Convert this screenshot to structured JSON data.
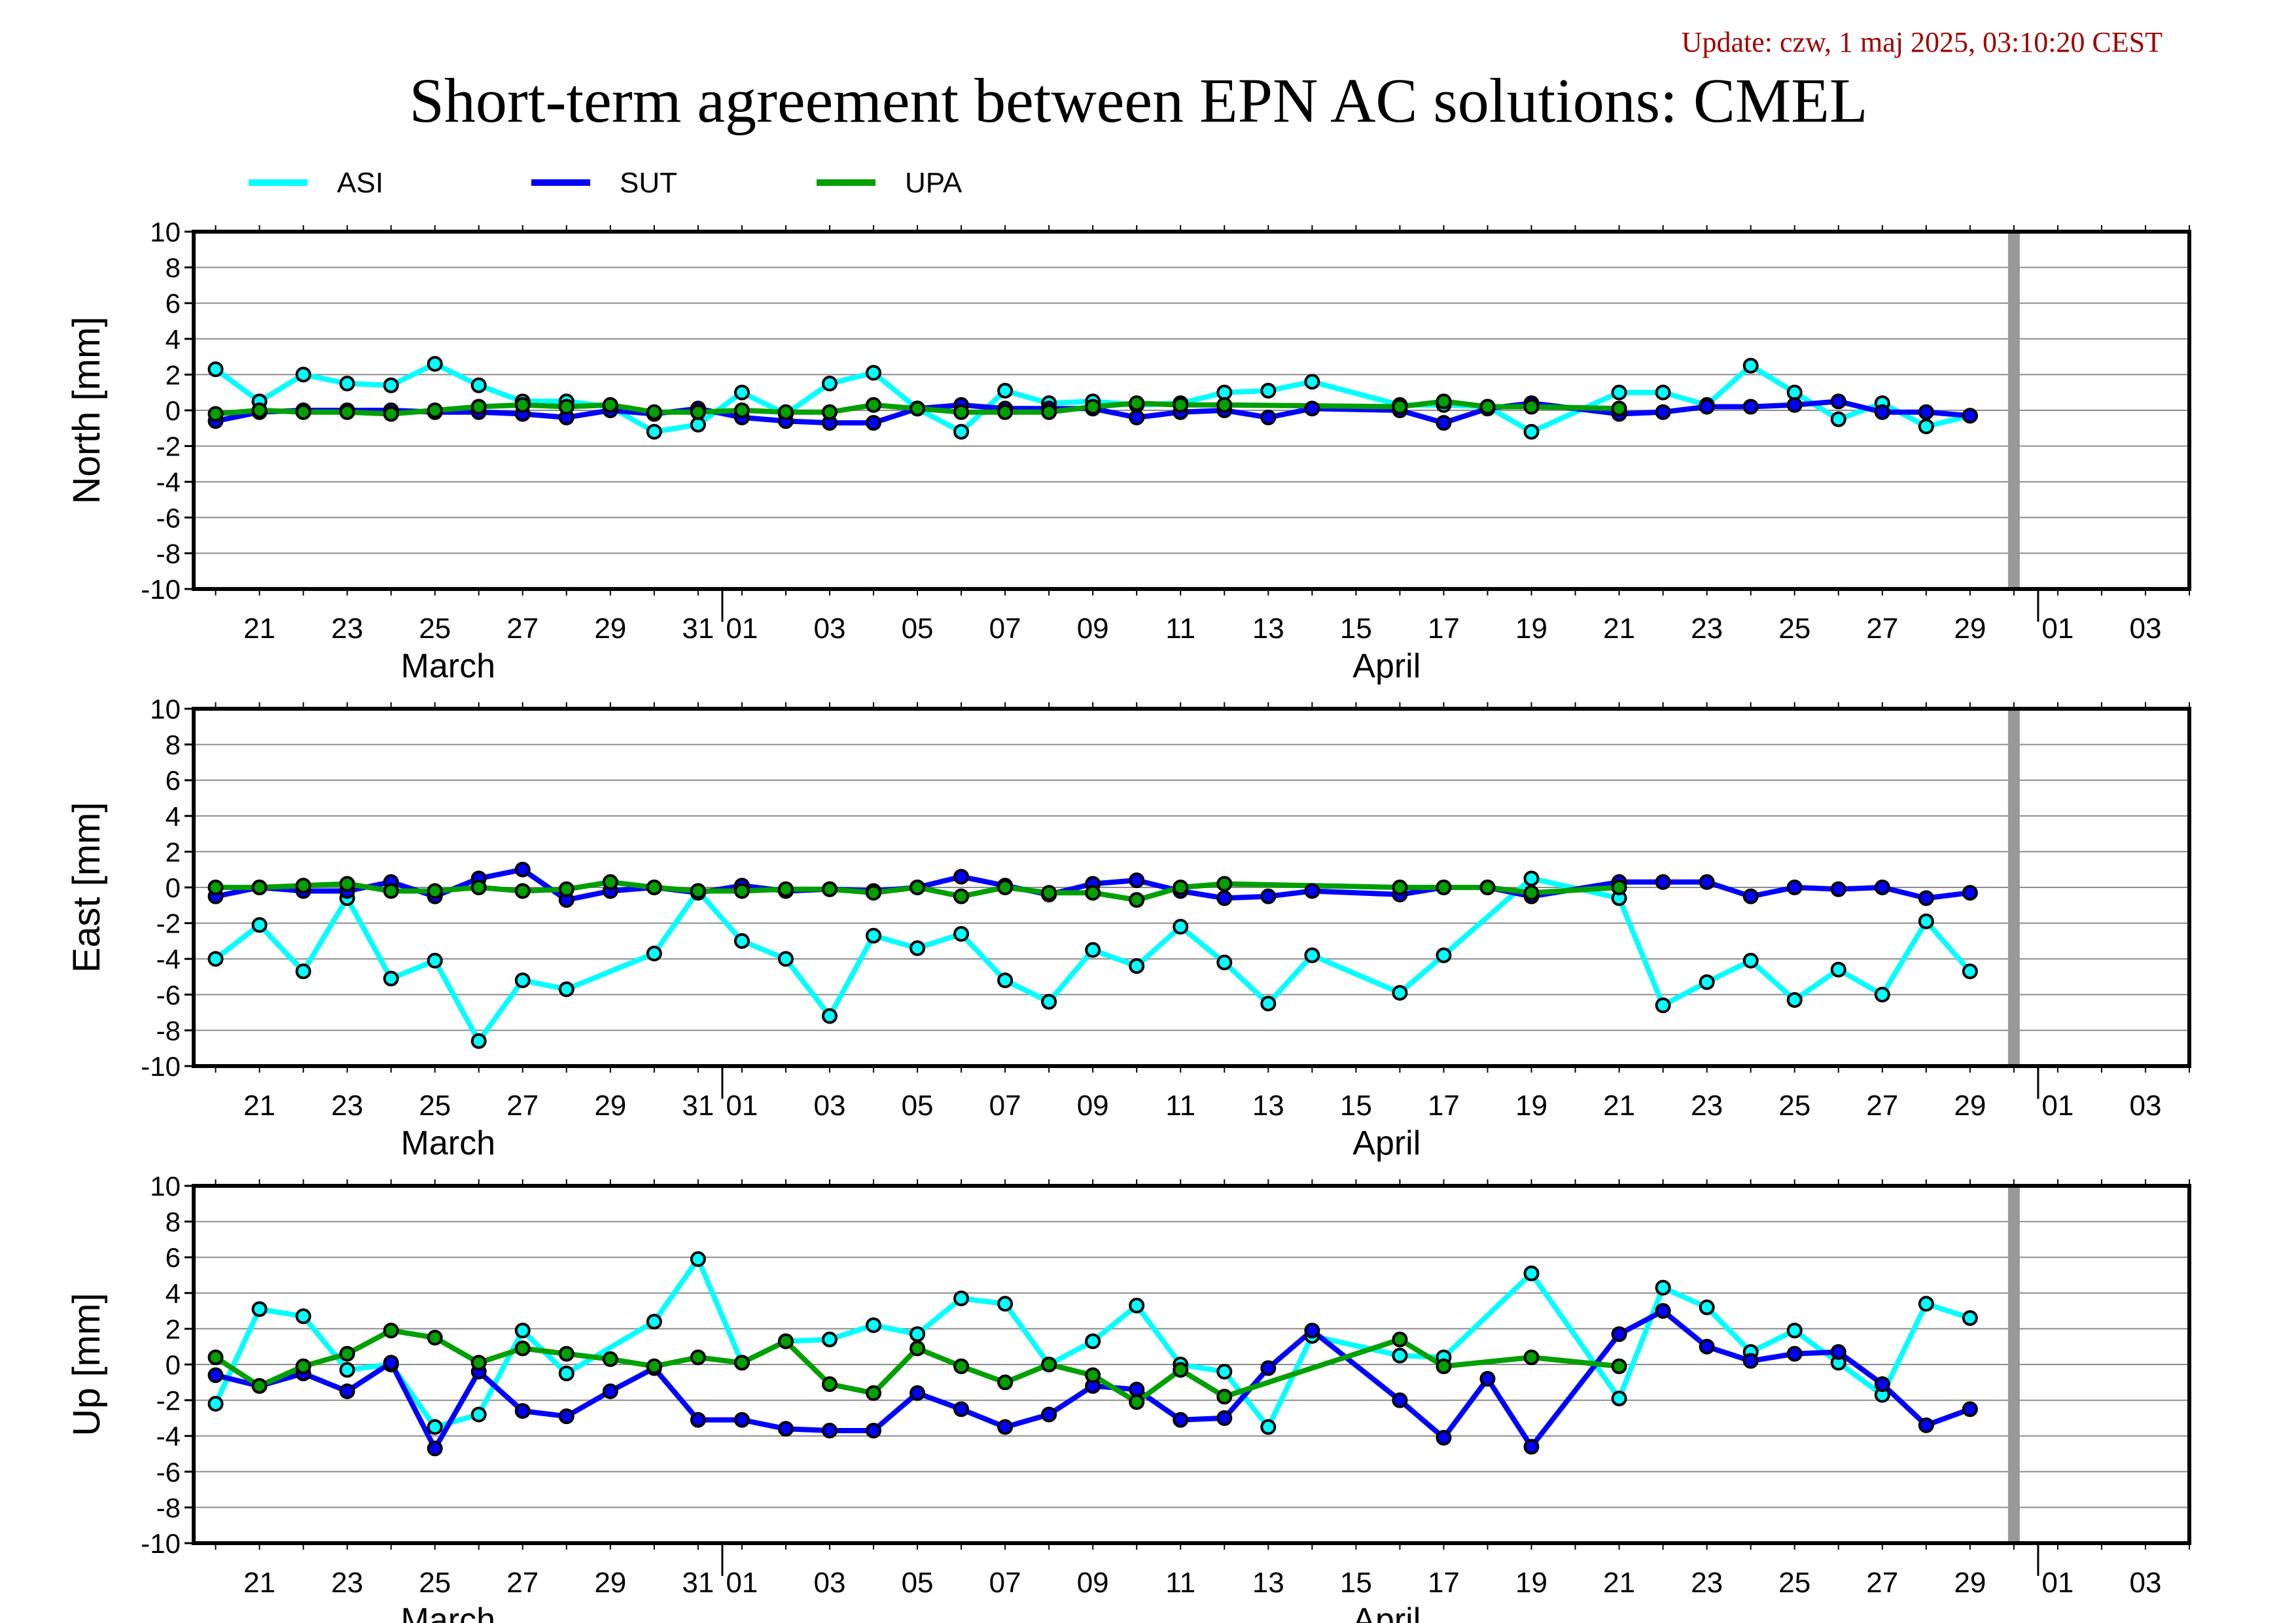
{
  "update_text": "Update: czw, 1 maj 2025, 03:10:20 CEST",
  "title": "Short-term agreement between EPN AC solutions: CMEL",
  "colors": {
    "ASI": "#00ffff",
    "SUT": "#0000ff",
    "UPA": "#00a000",
    "update": "#a00000",
    "marker_line": "#999999"
  },
  "legend": [
    {
      "name": "ASI",
      "color": "#00ffff"
    },
    {
      "name": "SUT",
      "color": "#0000ff"
    },
    {
      "name": "UPA",
      "color": "#00a000"
    }
  ],
  "x_axis": {
    "tick_labels": [
      "21",
      "23",
      "25",
      "27",
      "29",
      "31",
      "01",
      "03",
      "05",
      "07",
      "09",
      "11",
      "13",
      "15",
      "17",
      "19",
      "21",
      "23",
      "25",
      "27",
      "29",
      "01",
      "03"
    ],
    "month_labels": [
      "March",
      "April"
    ]
  },
  "chart_data": [
    {
      "type": "line",
      "ylabel": "North [mm]",
      "ylim": [
        -10,
        10
      ],
      "yticks": [
        10,
        8,
        6,
        4,
        2,
        0,
        -2,
        -4,
        -6,
        -8,
        -10
      ],
      "x_range": [
        "2025-03-19.5",
        "2025-05-04"
      ],
      "marker_date": "2025-04-30",
      "series": [
        {
          "name": "ASI",
          "x": [
            "2025-03-20",
            "2025-03-21",
            "2025-03-22",
            "2025-03-23",
            "2025-03-24",
            "2025-03-25",
            "2025-03-26",
            "2025-03-27",
            "2025-03-28",
            "2025-03-29",
            "2025-03-30",
            "2025-03-31",
            "2025-04-01",
            "2025-04-02",
            "2025-04-03",
            "2025-04-04",
            "2025-04-05",
            "2025-04-06",
            "2025-04-07",
            "2025-04-08",
            "2025-04-09",
            "2025-04-10",
            "2025-04-11",
            "2025-04-12",
            "2025-04-13",
            "2025-04-14",
            "2025-04-16",
            "2025-04-17",
            "2025-04-18",
            "2025-04-19",
            "2025-04-21",
            "2025-04-22",
            "2025-04-23",
            "2025-04-24",
            "2025-04-25",
            "2025-04-26",
            "2025-04-27",
            "2025-04-28",
            "2025-04-29"
          ],
          "values": [
            2.3,
            0.5,
            2.0,
            1.5,
            1.4,
            2.6,
            1.4,
            0.5,
            0.5,
            0.2,
            -1.2,
            -0.8,
            1.0,
            -0.2,
            1.5,
            2.1,
            0.1,
            -1.2,
            1.1,
            0.4,
            0.5,
            0.3,
            0.4,
            1.0,
            1.1,
            1.6,
            0.3,
            0.3,
            0.2,
            -1.2,
            1.0,
            1.0,
            0.3,
            2.5,
            1.0,
            -0.5,
            0.4,
            -0.9,
            -0.3
          ]
        },
        {
          "name": "SUT",
          "x": [
            "2025-03-20",
            "2025-03-21",
            "2025-03-22",
            "2025-03-23",
            "2025-03-24",
            "2025-03-25",
            "2025-03-26",
            "2025-03-27",
            "2025-03-28",
            "2025-03-29",
            "2025-03-30",
            "2025-03-31",
            "2025-04-01",
            "2025-04-02",
            "2025-04-03",
            "2025-04-04",
            "2025-04-05",
            "2025-04-06",
            "2025-04-07",
            "2025-04-08",
            "2025-04-09",
            "2025-04-10",
            "2025-04-11",
            "2025-04-12",
            "2025-04-13",
            "2025-04-14",
            "2025-04-16",
            "2025-04-17",
            "2025-04-18",
            "2025-04-19",
            "2025-04-21",
            "2025-04-22",
            "2025-04-23",
            "2025-04-24",
            "2025-04-25",
            "2025-04-26",
            "2025-04-27",
            "2025-04-28",
            "2025-04-29"
          ],
          "values": [
            -0.6,
            -0.1,
            0.0,
            0.0,
            0.0,
            -0.1,
            -0.1,
            -0.2,
            -0.4,
            0.0,
            -0.2,
            0.1,
            -0.4,
            -0.6,
            -0.7,
            -0.7,
            0.1,
            0.3,
            0.1,
            0.1,
            0.1,
            -0.4,
            -0.1,
            0.0,
            -0.4,
            0.1,
            0.0,
            -0.7,
            0.1,
            0.4,
            -0.2,
            -0.1,
            0.2,
            0.2,
            0.3,
            0.5,
            -0.1,
            -0.1,
            -0.3
          ]
        },
        {
          "name": "UPA",
          "x": [
            "2025-03-20",
            "2025-03-21",
            "2025-03-22",
            "2025-03-23",
            "2025-03-24",
            "2025-03-25",
            "2025-03-26",
            "2025-03-27",
            "2025-03-28",
            "2025-03-29",
            "2025-03-30",
            "2025-03-31",
            "2025-04-01",
            "2025-04-02",
            "2025-04-03",
            "2025-04-04",
            "2025-04-05",
            "2025-04-06",
            "2025-04-07",
            "2025-04-08",
            "2025-04-09",
            "2025-04-10",
            "2025-04-11",
            "2025-04-12",
            "2025-04-16",
            "2025-04-17",
            "2025-04-18",
            "2025-04-19",
            "2025-04-21"
          ],
          "values": [
            -0.2,
            0.0,
            -0.1,
            -0.1,
            -0.2,
            0.0,
            0.2,
            0.3,
            0.2,
            0.3,
            -0.1,
            -0.1,
            0.0,
            -0.1,
            -0.1,
            0.3,
            0.1,
            -0.1,
            -0.1,
            -0.1,
            0.2,
            0.4,
            0.3,
            0.3,
            0.2,
            0.5,
            0.2,
            0.2,
            0.1
          ]
        }
      ]
    },
    {
      "type": "line",
      "ylabel": "East [mm]",
      "ylim": [
        -10,
        10
      ],
      "yticks": [
        10,
        8,
        6,
        4,
        2,
        0,
        -2,
        -4,
        -6,
        -8,
        -10
      ],
      "x_range": [
        "2025-03-19.5",
        "2025-05-04"
      ],
      "marker_date": "2025-04-30",
      "series": [
        {
          "name": "ASI",
          "x": [
            "2025-03-20",
            "2025-03-21",
            "2025-03-22",
            "2025-03-23",
            "2025-03-24",
            "2025-03-25",
            "2025-03-26",
            "2025-03-27",
            "2025-03-28",
            "2025-03-30",
            "2025-03-31",
            "2025-04-01",
            "2025-04-02",
            "2025-04-03",
            "2025-04-04",
            "2025-04-05",
            "2025-04-06",
            "2025-04-07",
            "2025-04-08",
            "2025-04-09",
            "2025-04-10",
            "2025-04-11",
            "2025-04-12",
            "2025-04-13",
            "2025-04-14",
            "2025-04-16",
            "2025-04-17",
            "2025-04-19",
            "2025-04-21",
            "2025-04-22",
            "2025-04-23",
            "2025-04-24",
            "2025-04-25",
            "2025-04-26",
            "2025-04-27",
            "2025-04-28",
            "2025-04-29"
          ],
          "values": [
            -4.0,
            -2.1,
            -4.7,
            -0.6,
            -5.1,
            -4.1,
            -8.6,
            -5.2,
            -5.7,
            -3.7,
            -0.2,
            -3.0,
            -4.0,
            -7.2,
            -2.7,
            -3.4,
            -2.6,
            -5.2,
            -6.4,
            -3.5,
            -4.4,
            -2.2,
            -4.2,
            -6.5,
            -3.8,
            -5.9,
            -3.8,
            0.5,
            -0.6,
            -6.6,
            -5.3,
            -4.1,
            -6.3,
            -4.6,
            -6.0,
            -1.9,
            -4.7
          ]
        },
        {
          "name": "SUT",
          "x": [
            "2025-03-20",
            "2025-03-21",
            "2025-03-22",
            "2025-03-23",
            "2025-03-24",
            "2025-03-25",
            "2025-03-26",
            "2025-03-27",
            "2025-03-28",
            "2025-03-29",
            "2025-03-30",
            "2025-03-31",
            "2025-04-01",
            "2025-04-02",
            "2025-04-03",
            "2025-04-04",
            "2025-04-05",
            "2025-04-06",
            "2025-04-07",
            "2025-04-08",
            "2025-04-09",
            "2025-04-10",
            "2025-04-11",
            "2025-04-12",
            "2025-04-13",
            "2025-04-14",
            "2025-04-16",
            "2025-04-17",
            "2025-04-18",
            "2025-04-19",
            "2025-04-21",
            "2025-04-22",
            "2025-04-23",
            "2025-04-24",
            "2025-04-25",
            "2025-04-26",
            "2025-04-27",
            "2025-04-28",
            "2025-04-29"
          ],
          "values": [
            -0.5,
            0.0,
            -0.2,
            -0.2,
            0.3,
            -0.5,
            0.5,
            1.0,
            -0.7,
            -0.2,
            0.0,
            -0.3,
            0.1,
            -0.2,
            -0.1,
            -0.2,
            0.0,
            0.6,
            0.1,
            -0.4,
            0.2,
            0.4,
            -0.2,
            -0.6,
            -0.5,
            -0.2,
            -0.4,
            0.0,
            0.0,
            -0.5,
            0.3,
            0.3,
            0.3,
            -0.5,
            0.0,
            -0.1,
            0.0,
            -0.6,
            -0.3
          ]
        },
        {
          "name": "UPA",
          "x": [
            "2025-03-20",
            "2025-03-21",
            "2025-03-22",
            "2025-03-23",
            "2025-03-24",
            "2025-03-25",
            "2025-03-26",
            "2025-03-27",
            "2025-03-28",
            "2025-03-29",
            "2025-03-30",
            "2025-03-31",
            "2025-04-01",
            "2025-04-02",
            "2025-04-03",
            "2025-04-04",
            "2025-04-05",
            "2025-04-06",
            "2025-04-07",
            "2025-04-08",
            "2025-04-09",
            "2025-04-10",
            "2025-04-11",
            "2025-04-12",
            "2025-04-16",
            "2025-04-17",
            "2025-04-18",
            "2025-04-19",
            "2025-04-21"
          ],
          "values": [
            0.0,
            0.0,
            0.1,
            0.2,
            -0.2,
            -0.2,
            0.0,
            -0.2,
            -0.1,
            0.3,
            0.0,
            -0.2,
            -0.2,
            -0.1,
            -0.1,
            -0.3,
            0.0,
            -0.5,
            0.0,
            -0.3,
            -0.3,
            -0.7,
            0.0,
            0.2,
            0.0,
            0.0,
            0.0,
            -0.3,
            0.0
          ]
        }
      ]
    },
    {
      "type": "line",
      "ylabel": "Up [mm]",
      "ylim": [
        -10,
        10
      ],
      "yticks": [
        10,
        8,
        6,
        4,
        2,
        0,
        -2,
        -4,
        -6,
        -8,
        -10
      ],
      "x_range": [
        "2025-03-19.5",
        "2025-05-04"
      ],
      "marker_date": "2025-04-30",
      "series": [
        {
          "name": "ASI",
          "x": [
            "2025-03-20",
            "2025-03-21",
            "2025-03-22",
            "2025-03-23",
            "2025-03-24",
            "2025-03-25",
            "2025-03-26",
            "2025-03-27",
            "2025-03-28",
            "2025-03-30",
            "2025-03-31",
            "2025-04-01",
            "2025-04-02",
            "2025-04-03",
            "2025-04-04",
            "2025-04-05",
            "2025-04-06",
            "2025-04-07",
            "2025-04-08",
            "2025-04-09",
            "2025-04-10",
            "2025-04-11",
            "2025-04-12",
            "2025-04-13",
            "2025-04-14",
            "2025-04-16",
            "2025-04-17",
            "2025-04-19",
            "2025-04-21",
            "2025-04-22",
            "2025-04-23",
            "2025-04-24",
            "2025-04-25",
            "2025-04-26",
            "2025-04-27",
            "2025-04-28",
            "2025-04-29"
          ],
          "values": [
            -2.2,
            3.1,
            2.7,
            -0.3,
            0.0,
            -3.5,
            -2.8,
            1.9,
            -0.5,
            2.4,
            5.9,
            0.1,
            1.3,
            1.4,
            2.2,
            1.7,
            3.7,
            3.4,
            0.0,
            1.3,
            3.3,
            0.0,
            -0.4,
            -3.5,
            1.6,
            0.5,
            0.4,
            5.1,
            -1.9,
            4.3,
            3.2,
            0.7,
            1.9,
            0.1,
            -1.7,
            3.4,
            2.6
          ]
        },
        {
          "name": "SUT",
          "x": [
            "2025-03-20",
            "2025-03-21",
            "2025-03-22",
            "2025-03-23",
            "2025-03-24",
            "2025-03-25",
            "2025-03-26",
            "2025-03-27",
            "2025-03-28",
            "2025-03-29",
            "2025-03-30",
            "2025-03-31",
            "2025-04-01",
            "2025-04-02",
            "2025-04-03",
            "2025-04-04",
            "2025-04-05",
            "2025-04-06",
            "2025-04-07",
            "2025-04-08",
            "2025-04-09",
            "2025-04-10",
            "2025-04-11",
            "2025-04-12",
            "2025-04-13",
            "2025-04-14",
            "2025-04-16",
            "2025-04-17",
            "2025-04-18",
            "2025-04-19",
            "2025-04-21",
            "2025-04-22",
            "2025-04-23",
            "2025-04-24",
            "2025-04-25",
            "2025-04-26",
            "2025-04-27",
            "2025-04-28",
            "2025-04-29"
          ],
          "values": [
            -0.6,
            -1.2,
            -0.5,
            -1.5,
            0.1,
            -4.7,
            -0.4,
            -2.6,
            -2.9,
            -1.5,
            -0.2,
            -3.1,
            -3.1,
            -3.6,
            -3.7,
            -3.7,
            -1.6,
            -2.5,
            -3.5,
            -2.8,
            -1.2,
            -1.4,
            -3.1,
            -3.0,
            -0.2,
            1.9,
            -2.0,
            -4.1,
            -0.8,
            -4.6,
            1.7,
            3.0,
            1.0,
            0.2,
            0.6,
            0.7,
            -1.1,
            -3.4,
            -2.5
          ]
        },
        {
          "name": "UPA",
          "x": [
            "2025-03-20",
            "2025-03-21",
            "2025-03-22",
            "2025-03-23",
            "2025-03-24",
            "2025-03-25",
            "2025-03-26",
            "2025-03-27",
            "2025-03-28",
            "2025-03-29",
            "2025-03-30",
            "2025-03-31",
            "2025-04-01",
            "2025-04-02",
            "2025-04-03",
            "2025-04-04",
            "2025-04-05",
            "2025-04-06",
            "2025-04-07",
            "2025-04-08",
            "2025-04-09",
            "2025-04-10",
            "2025-04-11",
            "2025-04-12",
            "2025-04-16",
            "2025-04-17",
            "2025-04-19",
            "2025-04-21"
          ],
          "values": [
            0.4,
            -1.2,
            -0.1,
            0.6,
            1.9,
            1.5,
            0.1,
            0.9,
            0.6,
            0.3,
            -0.1,
            0.4,
            0.1,
            1.3,
            -1.1,
            -1.6,
            0.9,
            -0.1,
            -1.0,
            0.0,
            -0.6,
            -2.1,
            -0.3,
            -1.8,
            1.4,
            -0.1,
            0.4,
            -0.1
          ]
        }
      ]
    }
  ]
}
